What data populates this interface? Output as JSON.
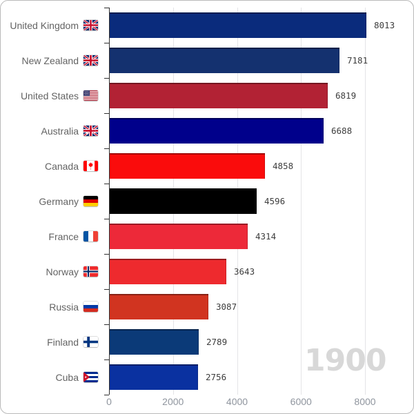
{
  "chart_data": {
    "type": "bar",
    "orientation": "horizontal",
    "title": "",
    "watermark": "1900",
    "categories": [
      "United Kingdom",
      "New Zealand",
      "United States",
      "Australia",
      "Canada",
      "Germany",
      "France",
      "Norway",
      "Russia",
      "Finland",
      "Cuba"
    ],
    "values": [
      8013,
      7181,
      6819,
      6688,
      4858,
      4596,
      4314,
      3643,
      3087,
      2789,
      2756
    ],
    "value_labels": [
      "8013",
      "7181",
      "6819",
      "6688",
      "4858",
      "4596",
      "4314",
      "3643",
      "3087",
      "2789",
      "2756"
    ],
    "bar_colors": [
      "#0a2b7c",
      "#14316f",
      "#b22234",
      "#00008b",
      "#fa0c0c",
      "#000000",
      "#ed2939",
      "#ee2a2e",
      "#d13420",
      "#0b3a78",
      "#0a31a0"
    ],
    "flag_codes": [
      "gb",
      "nz",
      "us",
      "au",
      "ca",
      "de",
      "fr",
      "no",
      "ru",
      "fi",
      "cu"
    ],
    "flag_icon_names": [
      "united-kingdom-flag-icon",
      "new-zealand-flag-icon",
      "united-states-flag-icon",
      "australia-flag-icon",
      "canada-flag-icon",
      "germany-flag-icon",
      "france-flag-icon",
      "norway-flag-icon",
      "russia-flag-icon",
      "finland-flag-icon",
      "cuba-flag-icon"
    ],
    "x_ticks": [
      "0",
      "2000",
      "4000",
      "6000",
      "8000"
    ],
    "x_tick_values": [
      0,
      2000,
      4000,
      6000,
      8000
    ],
    "xlim": [
      0,
      9430
    ],
    "grid": true,
    "legend": "none",
    "value_labels_shown": true,
    "axis_color": "#2f2f2f",
    "gridline_color": "#e4e4e7",
    "watermark_color": "#d8d8d8"
  }
}
